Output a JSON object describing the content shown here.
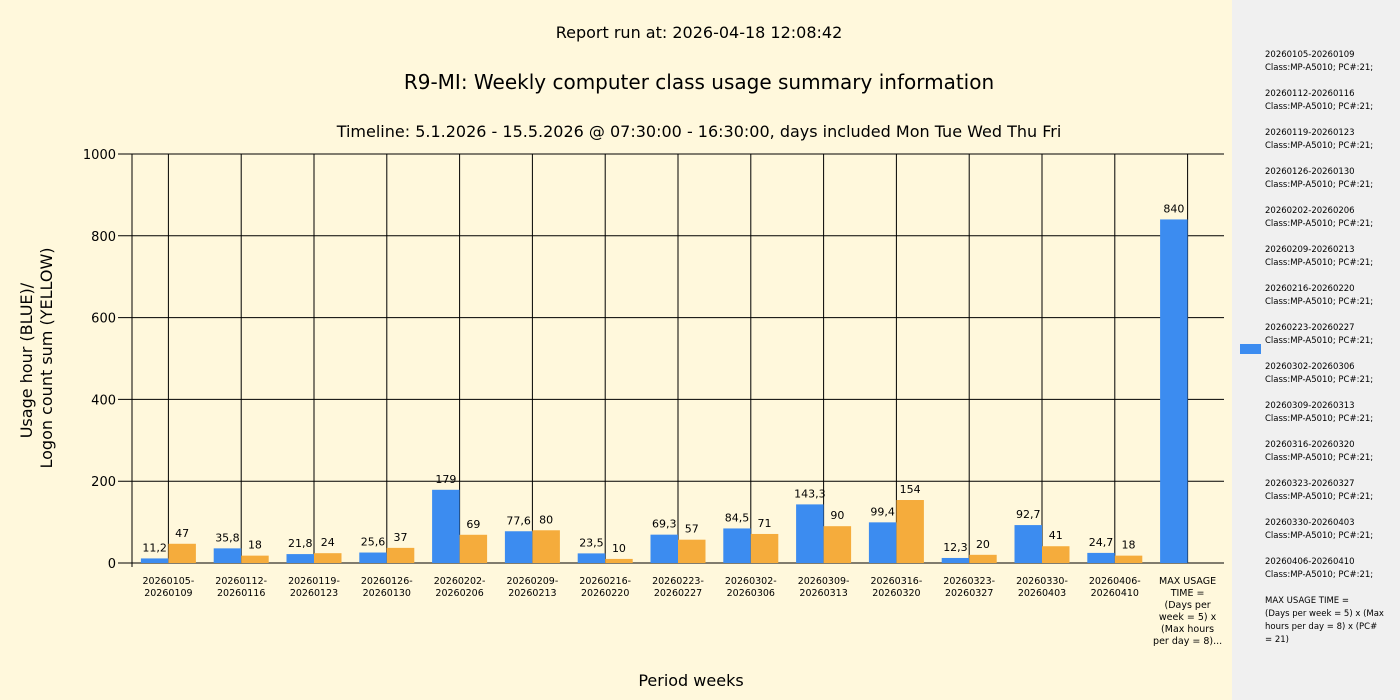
{
  "report_run": "Report run at: 2026-04-18 12:08:42",
  "chart_data": {
    "type": "bar",
    "title": "R9-MI: Weekly computer class usage summary information",
    "subtitle": "Timeline:  5.1.2026  - 15.5.2026  @  07:30:00 -  16:30:00, days included Mon Tue Wed Thu Fri",
    "ylabel_line1": "Usage hour (BLUE)/",
    "ylabel_line2": "Logon count sum (YELLOW)",
    "xlabel": "Period weeks",
    "ylim": [
      0,
      1000
    ],
    "yticks": [
      0,
      200,
      400,
      600,
      800,
      1000
    ],
    "grid": true,
    "categories": [
      [
        "20260105-",
        "20260109"
      ],
      [
        "20260112-",
        "20260116"
      ],
      [
        "20260119-",
        "20260123"
      ],
      [
        "20260126-",
        "20260130"
      ],
      [
        "20260202-",
        "20260206"
      ],
      [
        "20260209-",
        "20260213"
      ],
      [
        "20260216-",
        "20260220"
      ],
      [
        "20260223-",
        "20260227"
      ],
      [
        "20260302-",
        "20260306"
      ],
      [
        "20260309-",
        "20260313"
      ],
      [
        "20260316-",
        "20260320"
      ],
      [
        "20260323-",
        "20260327"
      ],
      [
        "20260330-",
        "20260403"
      ],
      [
        "20260406-",
        "20260410"
      ],
      [
        "MAX USAGE",
        "TIME =",
        "(Days per",
        "week = 5) x",
        "(Max hours",
        "per day = 8)..."
      ]
    ],
    "series": [
      {
        "color": "#3c8cf0",
        "values": [
          11.2,
          35.8,
          21.8,
          25.6,
          179,
          77.6,
          23.5,
          69.3,
          84.5,
          143.3,
          99.4,
          12.3,
          92.7,
          24.7,
          840
        ],
        "labels": [
          "11,2",
          "35,8",
          "21,8",
          "25,6",
          "179",
          "77,6",
          "23,5",
          "69,3",
          "84,5",
          "143,3",
          "99,4",
          "12,3",
          "92,7",
          "24,7",
          "840"
        ]
      },
      {
        "color": "#f5ac3c",
        "values": [
          47,
          18,
          24,
          37,
          69,
          80,
          10,
          57,
          71,
          90,
          154,
          20,
          41,
          18,
          null
        ],
        "labels": [
          "47",
          "18",
          "24",
          "37",
          "69",
          "80",
          "10",
          "57",
          "71",
          "90",
          "154",
          "20",
          "41",
          "18",
          ""
        ]
      }
    ]
  },
  "legend": {
    "swatch_color": "#3c8cf0",
    "entries": [
      "20260105-20260109\nClass:MP-A5010; PC#:21;",
      "20260112-20260116\nClass:MP-A5010; PC#:21;",
      "20260119-20260123\nClass:MP-A5010; PC#:21;",
      "20260126-20260130\nClass:MP-A5010; PC#:21;",
      "20260202-20260206\nClass:MP-A5010; PC#:21;",
      "20260209-20260213\nClass:MP-A5010; PC#:21;",
      "20260216-20260220\nClass:MP-A5010; PC#:21;",
      "20260223-20260227\nClass:MP-A5010; PC#:21;",
      "20260302-20260306\nClass:MP-A5010; PC#:21;",
      "20260309-20260313\nClass:MP-A5010; PC#:21;",
      "20260316-20260320\nClass:MP-A5010; PC#:21;",
      "20260323-20260327\nClass:MP-A5010; PC#:21;",
      "20260330-20260403\nClass:MP-A5010; PC#:21;",
      "20260406-20260410\nClass:MP-A5010; PC#:21;",
      "MAX USAGE TIME =\n (Days per week = 5) x (Max\nhours per day = 8) x (PC#\n= 21)"
    ]
  }
}
